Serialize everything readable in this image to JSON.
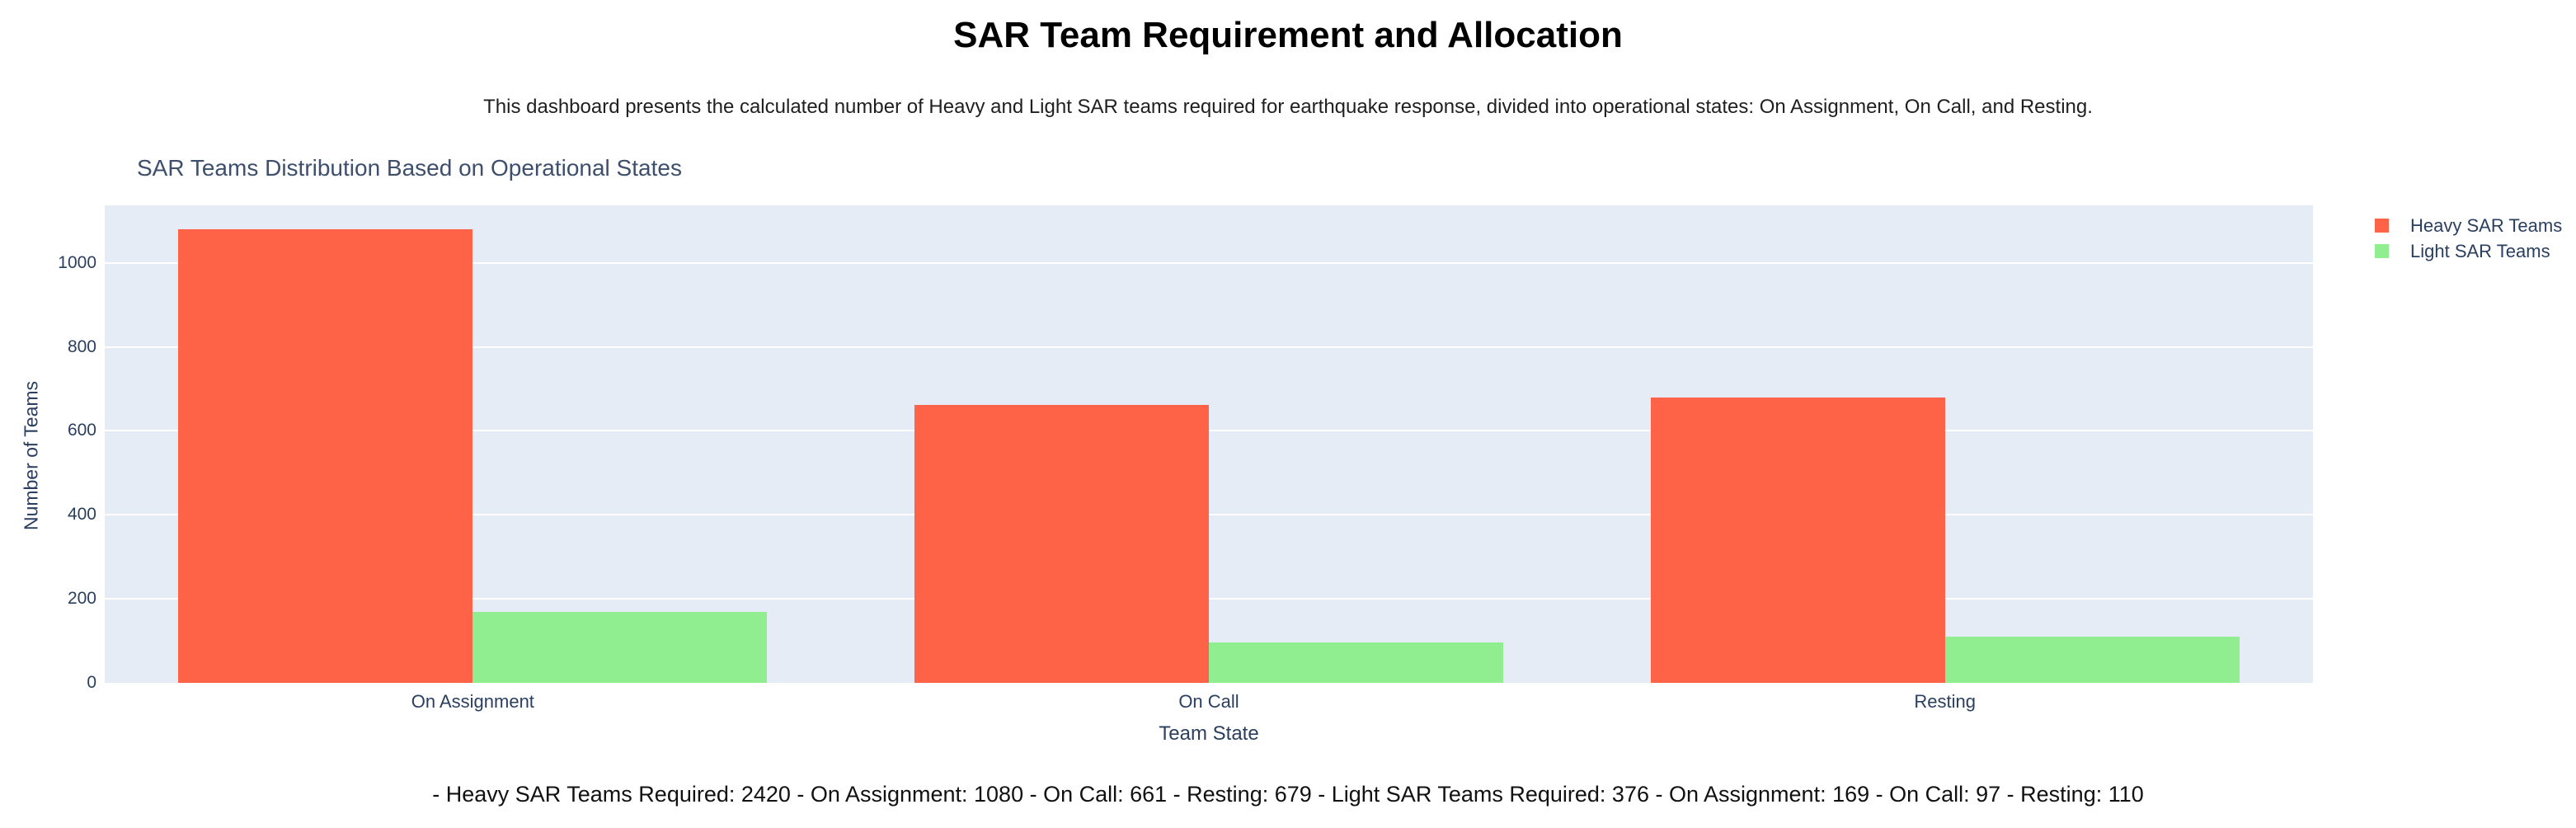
{
  "page": {
    "title": "SAR Team Requirement and Allocation",
    "subtitle": "This dashboard presents the calculated number of Heavy and Light SAR teams required for earthquake response, divided into operational states: On Assignment, On Call, and Resting.",
    "footer": "- Heavy SAR Teams Required: 2420 - On Assignment: 1080 - On Call: 661 - Resting: 679 - Light SAR Teams Required: 376 - On Assignment: 169 - On Call: 97 - Resting: 110"
  },
  "chart_data": {
    "type": "bar",
    "title": "SAR Teams Distribution Based on Operational States",
    "categories": [
      "On Assignment",
      "On Call",
      "Resting"
    ],
    "series": [
      {
        "name": "Heavy SAR Teams",
        "color": "#FF6347",
        "values": [
          1080,
          661,
          679
        ]
      },
      {
        "name": "Light SAR Teams",
        "color": "#90EE90",
        "values": [
          169,
          97,
          110
        ]
      }
    ],
    "xlabel": "Team State",
    "ylabel": "Number of Teams",
    "ylim": [
      0,
      1137
    ],
    "yticks": [
      0,
      200,
      400,
      600,
      800,
      1000
    ],
    "grid": true,
    "legend_position": "top-right",
    "colors": {
      "plot_background": "#E5ECF6",
      "gridline": "#FFFFFF",
      "axis_text": "#2a3f5f",
      "heavy_bar": "#FF6347",
      "light_bar": "#90EE90"
    }
  }
}
